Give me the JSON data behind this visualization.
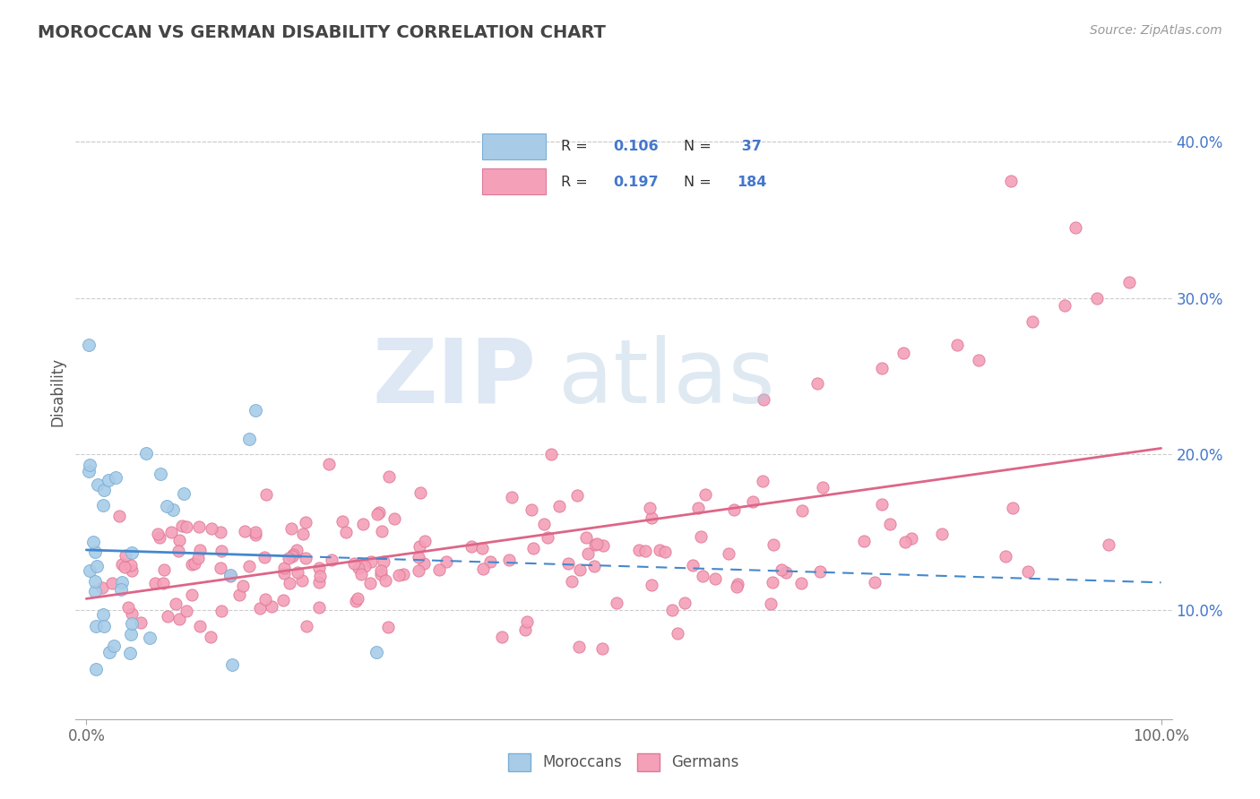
{
  "title": "MOROCCAN VS GERMAN DISABILITY CORRELATION CHART",
  "source": "Source: ZipAtlas.com",
  "ylabel": "Disability",
  "xlim": [
    -0.01,
    1.01
  ],
  "ylim": [
    0.03,
    0.45
  ],
  "xtick_pos": [
    0.0,
    1.0
  ],
  "xtick_labels": [
    "0.0%",
    "100.0%"
  ],
  "yticks": [
    0.1,
    0.2,
    0.3,
    0.4
  ],
  "ytick_labels": [
    "10.0%",
    "20.0%",
    "30.0%",
    "40.0%"
  ],
  "grid_color": "#cccccc",
  "background_color": "#ffffff",
  "moroccan_color": "#a8cce8",
  "moroccan_edge_color": "#7aaed4",
  "german_color": "#f4a0b8",
  "german_edge_color": "#e07898",
  "moroccan_R": 0.106,
  "moroccan_N": 37,
  "german_R": 0.197,
  "german_N": 184,
  "moroccan_trend_color": "#4488cc",
  "german_trend_color": "#dd6688",
  "watermark_zip": "ZIP",
  "watermark_atlas": "atlas",
  "legend_text_color": "#333333",
  "legend_value_color": "#4477cc",
  "tick_color": "#666666"
}
